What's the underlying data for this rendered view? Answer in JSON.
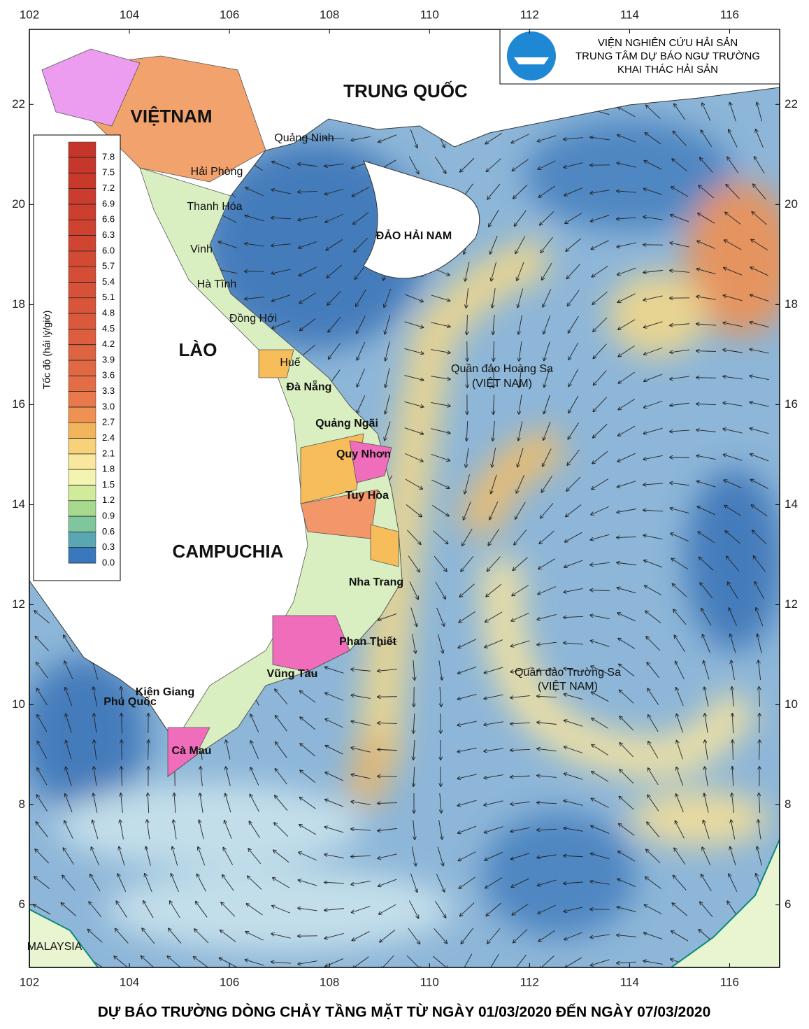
{
  "map": {
    "header": {
      "lines": [
        "VIỆN NGHIÊN CỨU HẢI SẢN",
        "TRUNG TÂM DỰ BÁO NGƯ TRƯỜNG",
        "KHAI THÁC HẢI SẢN"
      ]
    },
    "title": "DỰ BÁO TRƯỜNG DÒNG CHẢY TẦNG MẶT TỪ NGÀY 01/03/2020 ĐẾN NGÀY 07/03/2020",
    "xlim": [
      102,
      117
    ],
    "ylim": [
      4.75,
      23.5
    ],
    "xticks": [
      102,
      104,
      106,
      108,
      110,
      112,
      114,
      116
    ],
    "yticks": [
      6,
      8,
      10,
      12,
      14,
      16,
      18,
      20,
      22
    ],
    "places": [
      "VIỆTNAM",
      "TRUNG QUỐC",
      "LÀO",
      "CAMPUCHIA",
      "ĐẢO HẢI NAM",
      "Quảng Ninh",
      "Hải Phòng",
      "Thanh Hóa",
      "Vinh",
      "Hà Tĩnh",
      "Đồng Hới",
      "Huế",
      "Đà Nẵng",
      "Quảng Ngãi",
      "Quy Nhơn",
      "Tuy Hòa",
      "Nha Trang",
      "Phan Thiết",
      "Vũng Tàu",
      "Kiên Giang",
      "Phú Quốc",
      "Cà Mau",
      "Quần đảo Hoàng Sa",
      "(VIỆT NAM)",
      "Quần đảo Trường Sa",
      "(VIỆT NAM)",
      "MALAYSIA"
    ],
    "colorbar": {
      "title": "Tốc độ (hải lý/giờ)",
      "levels": [
        {
          "value": 0,
          "label": "0.0"
        },
        0.3,
        0.6,
        0.9,
        1.2,
        1.5,
        1.8,
        2.1,
        2.4,
        2.7,
        {
          "value": 3,
          "label": "3.0"
        },
        3.3,
        3.6,
        3.9,
        4.2,
        4.5,
        4.8,
        5.1,
        5.4,
        5.7,
        {
          "value": 6,
          "label": "6.0"
        },
        6.3,
        6.6,
        6.9,
        7.2,
        7.5,
        7.8
      ],
      "colors": [
        "#3a78be",
        "#5aa7b3",
        "#80c69d",
        "#a7d98f",
        "#d2eb9a",
        "#f3f4b2",
        "#f8e79c",
        "#f7d27a",
        "#f3b55c",
        "#ef9152",
        "#e9784a",
        "#e36e46",
        "#e06842",
        "#de6340",
        "#dc5e3e",
        "#da593c",
        "#d8553a",
        "#d65138",
        "#d44d36",
        "#d24934",
        "#d04532",
        "#ce4230",
        "#cc3f2f",
        "#ca3c2d",
        "#c8392c",
        "#c6372b",
        "#c4352a"
      ]
    }
  }
}
